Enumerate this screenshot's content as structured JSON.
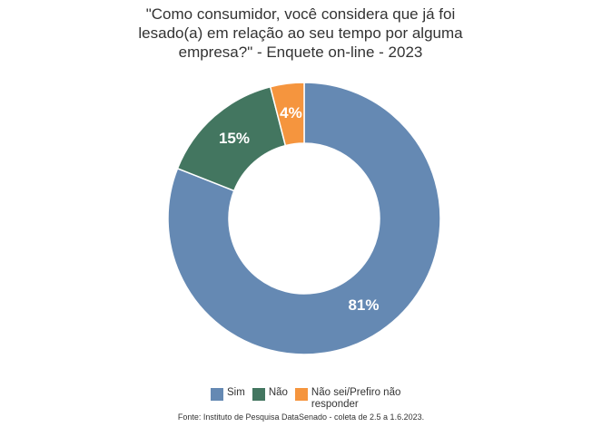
{
  "chart_data": {
    "type": "donut",
    "title": [
      "\"Como consumidor, você considera que já foi",
      "lesado(a) em relação ao seu tempo por alguma",
      "empresa?\" - Enquete on-line - 2023"
    ],
    "categories": [
      "Sim",
      "Não",
      "Não sei/Prefiro não responder"
    ],
    "values": [
      81,
      15,
      4
    ],
    "value_labels": [
      "81%",
      "15%",
      "4%"
    ],
    "colors": [
      "#6589b3",
      "#437660",
      "#f5953e"
    ],
    "source": "Fonte: Instituto de Pesquisa DataSenado - coleta de 2.5 a 1.6.2023."
  }
}
